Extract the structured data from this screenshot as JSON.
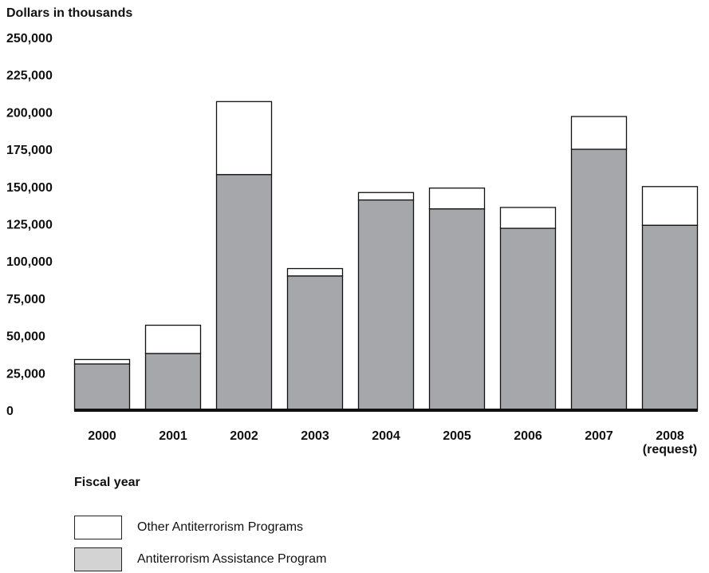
{
  "chart_data": {
    "type": "bar",
    "stacked": true,
    "ylabel": "Dollars in thousands",
    "xlabel": "Fiscal year",
    "ylim": [
      0,
      250000
    ],
    "yticks": [
      "0",
      "25,000",
      "50,000",
      "75,000",
      "100,000",
      "125,000",
      "150,000",
      "175,000",
      "200,000",
      "225,000",
      "250,000"
    ],
    "categories": [
      "2000",
      "2001",
      "2002",
      "2003",
      "2004",
      "2005",
      "2006",
      "2007",
      "2008\n(request)"
    ],
    "category_labels": [
      [
        "2000"
      ],
      [
        "2001"
      ],
      [
        "2002"
      ],
      [
        "2003"
      ],
      [
        "2004"
      ],
      [
        "2005"
      ],
      [
        "2006"
      ],
      [
        "2007"
      ],
      [
        "2008",
        "(request)"
      ]
    ],
    "series": [
      {
        "name": "Antiterrorism Assistance Program",
        "color": "#a6a7ab",
        "values": [
          31000,
          38000,
          158000,
          90000,
          141000,
          135000,
          122000,
          175000,
          124000
        ]
      },
      {
        "name": "Other Antiterrorism Programs",
        "color": "#ffffff",
        "values": [
          3000,
          19000,
          49000,
          5000,
          5000,
          14000,
          14000,
          22000,
          26000
        ]
      }
    ],
    "grid": false,
    "legend_position": "bottom-left"
  },
  "legend": [
    {
      "label": "Other Antiterrorism Programs",
      "color": "#ffffff"
    },
    {
      "label": "Antiterrorism Assistance Program",
      "color": "#d3d3d3"
    }
  ]
}
